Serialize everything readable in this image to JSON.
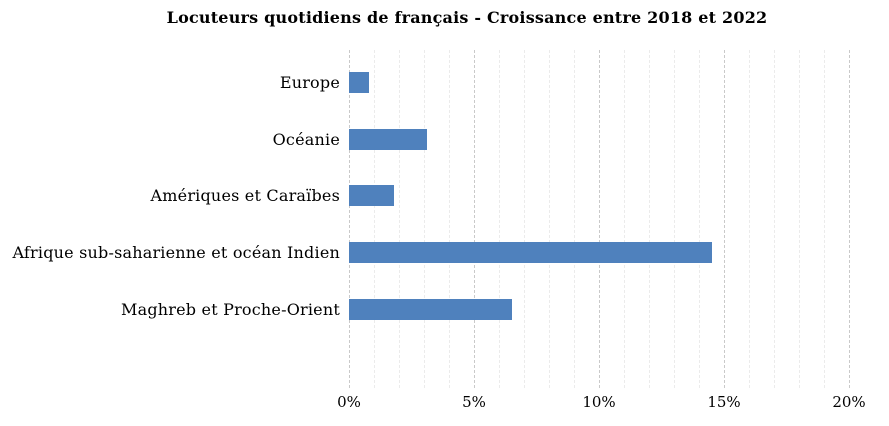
{
  "chart_data": {
    "type": "bar",
    "orientation": "horizontal",
    "title": "Locuteurs quotidiens de français - Croissance entre 2018 et 2022",
    "categories": [
      "Europe",
      "Océanie",
      "Amériques et Caraïbes",
      "Afrique sub-saharienne et océan Indien",
      "Maghreb et Proche-Orient"
    ],
    "values": [
      0.8,
      3.1,
      1.8,
      14.5,
      6.5
    ],
    "value_unit": "%",
    "xlabel": "",
    "ylabel": "",
    "xlim": [
      0,
      20
    ],
    "x_tick_labels": [
      "0%",
      "5%",
      "10%",
      "15%",
      "20%"
    ],
    "grid": "vertical dashed, minor every 1%, major every 5%",
    "legend": "none",
    "bar_color": "#4f81bd",
    "minor_grid_color": "#ebebeb",
    "major_grid_color": "#c9c9c9",
    "text_color": "#000000",
    "background_color": "#ffffff"
  }
}
